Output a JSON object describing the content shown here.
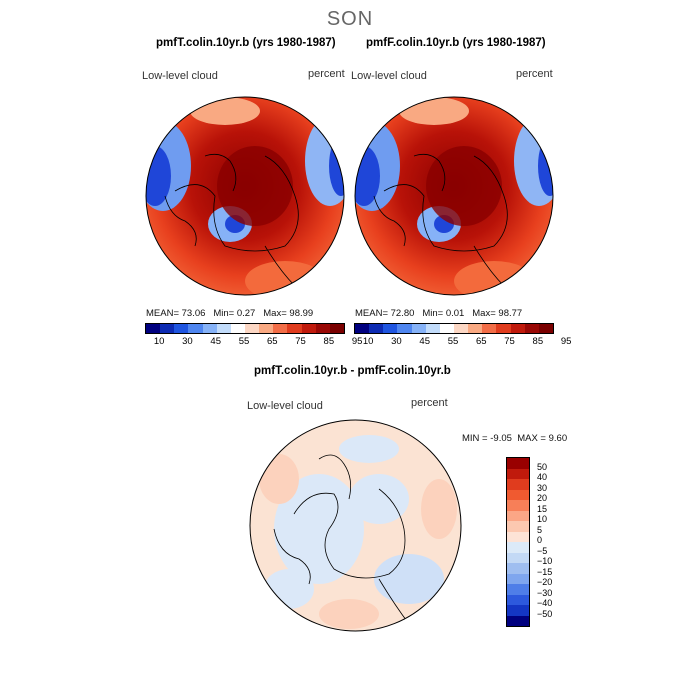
{
  "season": "SON",
  "panels": [
    {
      "title": "pmfT.colin.10yr.b (yrs 1980-1987)",
      "variable": "Low-level cloud",
      "units": "percent",
      "mean_label": "MEAN=",
      "mean": "73.06",
      "min_label": "Min=",
      "min": "0.27",
      "max_label": "Max=",
      "max": "98.99"
    },
    {
      "title": "pmfF.colin.10yr.b (yrs 1980-1987)",
      "variable": "Low-level cloud",
      "units": "percent",
      "mean_label": "MEAN=",
      "mean": "72.80",
      "min_label": "Min=",
      "min": "0.01",
      "max_label": "Max=",
      "max": "98.77"
    }
  ],
  "colorbar_top": {
    "colors": [
      "#00007f",
      "#0d2bb3",
      "#1f55e0",
      "#4f86f0",
      "#86b2f7",
      "#c2dcfb",
      "#ffffff",
      "#fcd7c4",
      "#f9a982",
      "#f26d47",
      "#e03c1e",
      "#c01a0c",
      "#990805",
      "#7a0000"
    ],
    "labels": [
      "10",
      "30",
      "45",
      "55",
      "65",
      "75",
      "85",
      "95"
    ]
  },
  "diff": {
    "title": "pmfT.colin.10yr.b - pmfF.colin.10yr.b",
    "variable": "Low-level cloud",
    "units": "percent",
    "min_label": "MIN =",
    "min": "-9.05",
    "max_label": "MAX =",
    "max": "9.60"
  },
  "colorbar_diff": {
    "colors": [
      "#990000",
      "#c01a0c",
      "#e03c1e",
      "#f05a30",
      "#f77f58",
      "#fba686",
      "#fcc8b0",
      "#fde3d6",
      "#dceaf8",
      "#c3d9f5",
      "#9fbef0",
      "#7fa6ee",
      "#4f7ee8",
      "#2d59dd",
      "#1436c4",
      "#00007f"
    ],
    "labels": [
      "50",
      "40",
      "30",
      "20",
      "15",
      "10",
      "5",
      "0",
      "−5",
      "−10",
      "−15",
      "−20",
      "−30",
      "−40",
      "−50"
    ]
  }
}
